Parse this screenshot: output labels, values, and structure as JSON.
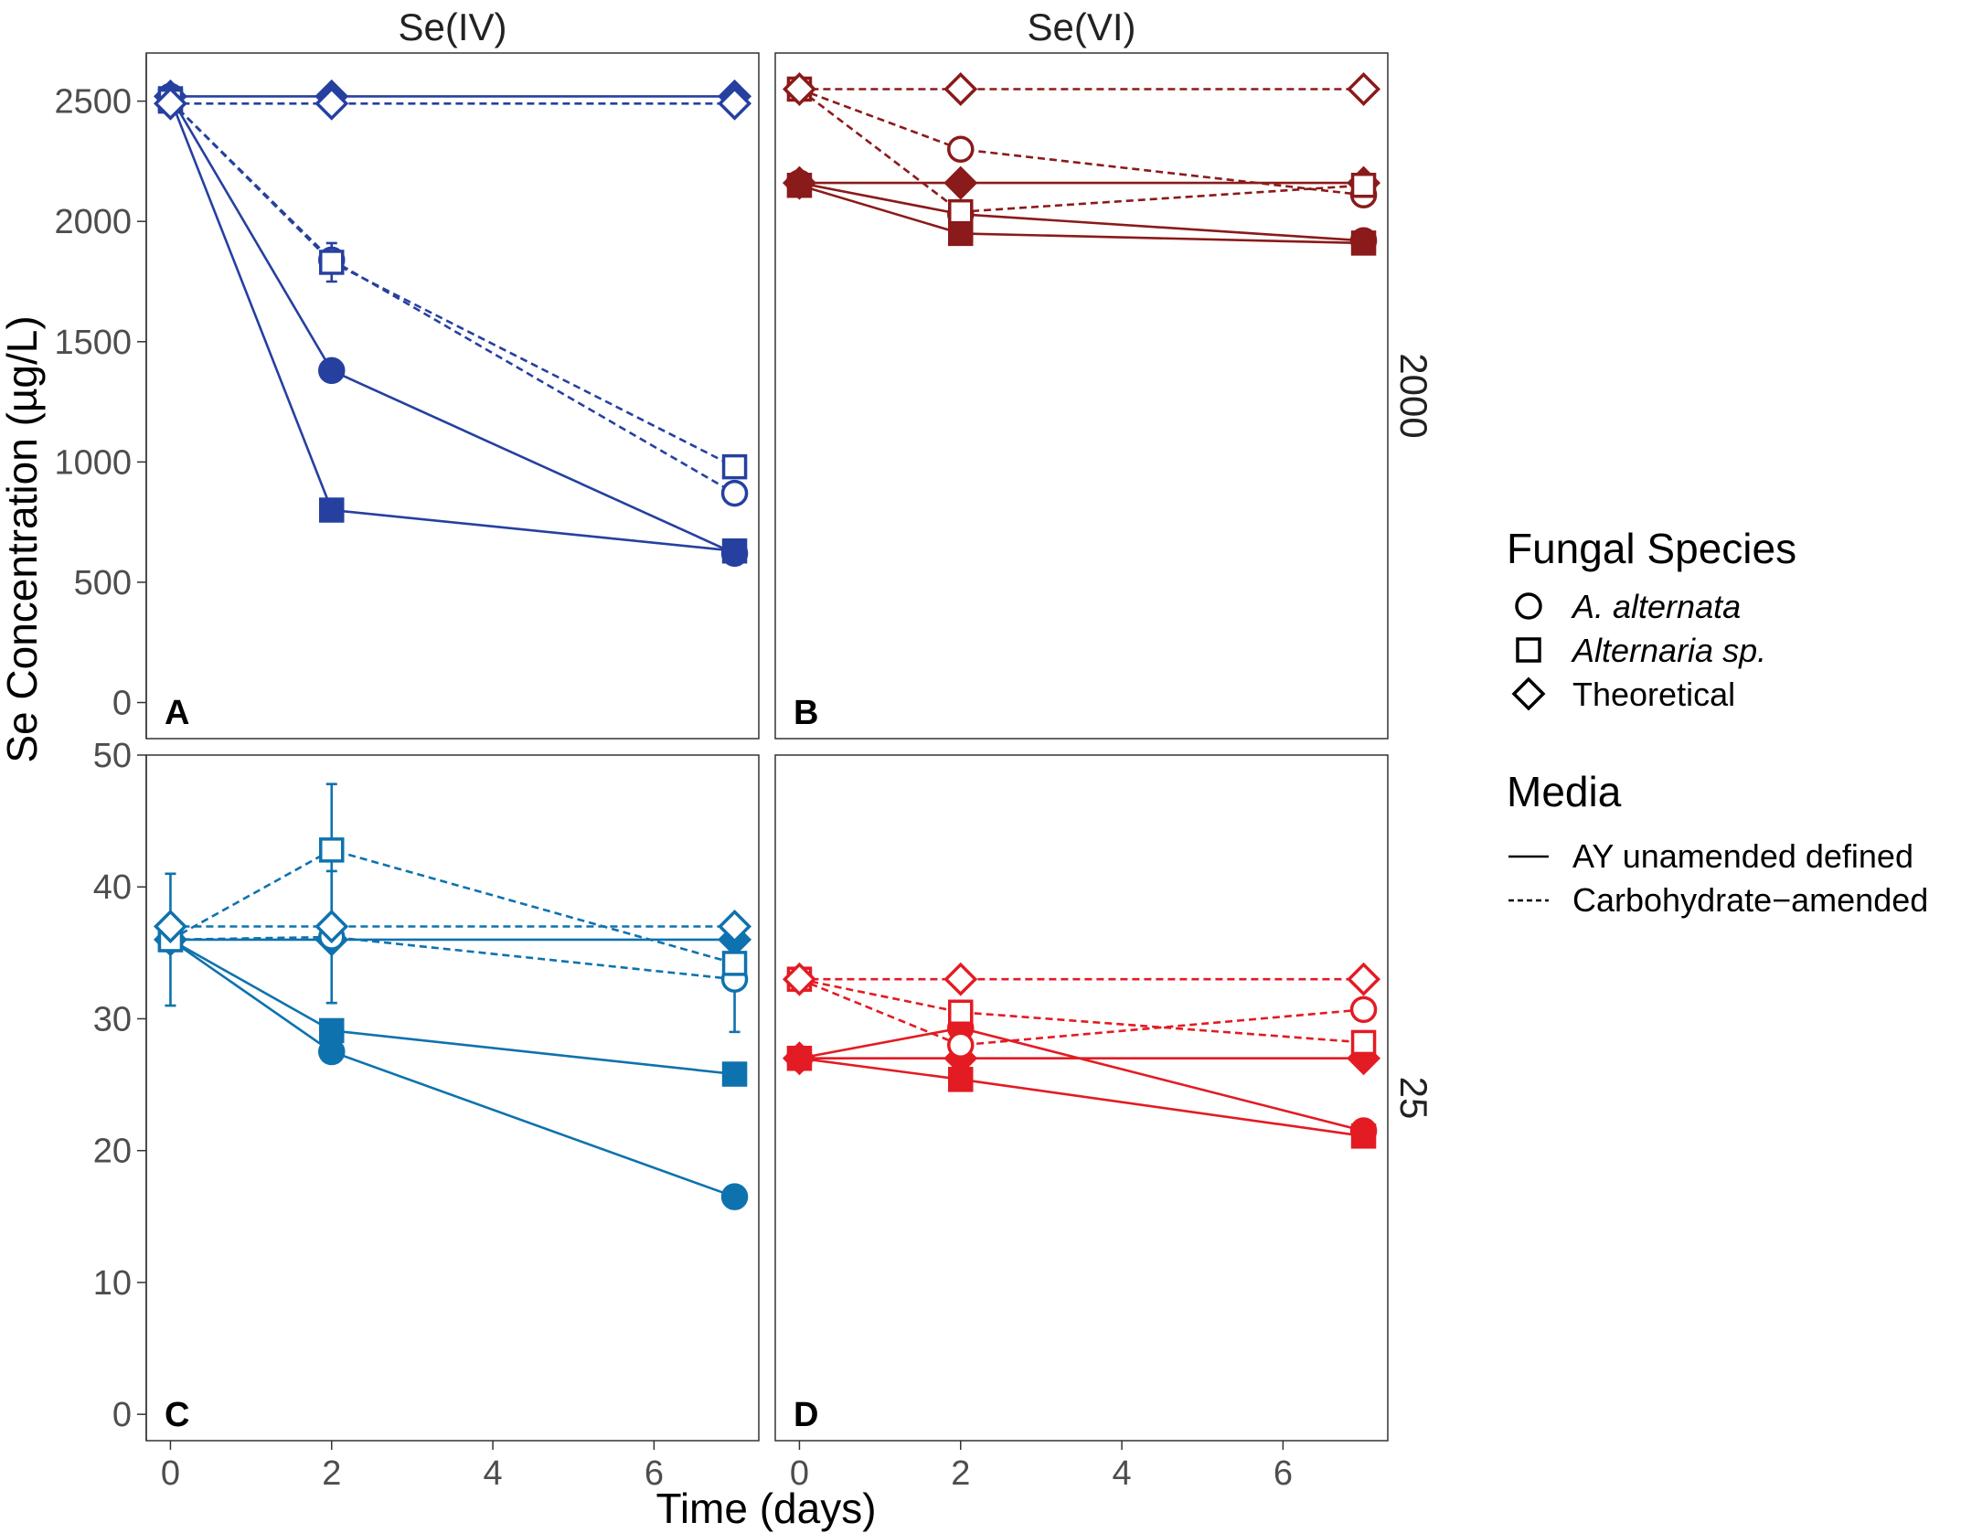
{
  "chart_data": {
    "type": "line",
    "facets": {
      "columns": [
        "Se(IV)",
        "Se(VI)"
      ],
      "rows": [
        "2000",
        "25"
      ]
    },
    "xlabel": "Time (days)",
    "ylabel": "Se Concentration (µg/L)",
    "xlim": [
      -0.3,
      7.3
    ],
    "x_ticks": [
      0,
      2,
      4,
      6
    ],
    "row_scales": {
      "2000": {
        "ylim": [
          -150,
          2700
        ],
        "ticks": [
          0,
          500,
          1000,
          1500,
          2000,
          2500
        ]
      },
      "25": {
        "ylim": [
          -2,
          50
        ],
        "ticks": [
          0,
          10,
          20,
          30,
          40,
          50
        ]
      }
    },
    "legend": {
      "species_title": "Fungal Species",
      "species": [
        {
          "label": "A. alternata",
          "shape": "circle",
          "italic": true
        },
        {
          "label": "Alternaria sp.",
          "shape": "square",
          "italic": true
        },
        {
          "label": "Theoretical",
          "shape": "diamond",
          "italic": false
        }
      ],
      "media_title": "Media",
      "media": [
        {
          "label": "AY unamended defined",
          "linetype": "solid"
        },
        {
          "label": "Carbohydrate−amended",
          "linetype": "dashed"
        }
      ],
      "position": "right"
    },
    "panels": [
      {
        "label": "A",
        "column": "Se(IV)",
        "row": "2000",
        "color": "#2640A0",
        "series": [
          {
            "species": "A. alternata",
            "media": "AY unamended defined",
            "x": [
              0,
              2,
              7
            ],
            "y": [
              2520,
              1380,
              620
            ]
          },
          {
            "species": "Alternaria sp.",
            "media": "AY unamended defined",
            "x": [
              0,
              2,
              7
            ],
            "y": [
              2510,
              800,
              630
            ]
          },
          {
            "species": "Theoretical",
            "media": "AY unamended defined",
            "x": [
              0,
              2,
              7
            ],
            "y": [
              2520,
              2520,
              2520
            ]
          },
          {
            "species": "A. alternata",
            "media": "Carbohydrate−amended",
            "x": [
              0,
              2,
              7
            ],
            "y": [
              2500,
              1840,
              870
            ]
          },
          {
            "species": "Alternaria sp.",
            "media": "Carbohydrate−amended",
            "x": [
              0,
              2,
              7
            ],
            "y": [
              2500,
              1830,
              980
            ],
            "err": [
              0,
              80,
              0
            ]
          },
          {
            "species": "Theoretical",
            "media": "Carbohydrate−amended",
            "x": [
              0,
              2,
              7
            ],
            "y": [
              2490,
              2490,
              2490
            ]
          }
        ]
      },
      {
        "label": "B",
        "column": "Se(VI)",
        "row": "2000",
        "color": "#8B1A1A",
        "series": [
          {
            "species": "A. alternata",
            "media": "AY unamended defined",
            "x": [
              0,
              2,
              7
            ],
            "y": [
              2160,
              2030,
              1920
            ]
          },
          {
            "species": "Alternaria sp.",
            "media": "AY unamended defined",
            "x": [
              0,
              2,
              7
            ],
            "y": [
              2150,
              1950,
              1910
            ]
          },
          {
            "species": "Theoretical",
            "media": "AY unamended defined",
            "x": [
              0,
              2,
              7
            ],
            "y": [
              2160,
              2160,
              2160
            ]
          },
          {
            "species": "A. alternata",
            "media": "Carbohydrate−amended",
            "x": [
              0,
              2,
              7
            ],
            "y": [
              2550,
              2300,
              2110
            ]
          },
          {
            "species": "Alternaria sp.",
            "media": "Carbohydrate−amended",
            "x": [
              0,
              2,
              7
            ],
            "y": [
              2550,
              2040,
              2150
            ]
          },
          {
            "species": "Theoretical",
            "media": "Carbohydrate−amended",
            "x": [
              0,
              2,
              7
            ],
            "y": [
              2550,
              2550,
              2550
            ]
          }
        ]
      },
      {
        "label": "C",
        "column": "Se(IV)",
        "row": "25",
        "color": "#0E72AE",
        "series": [
          {
            "species": "A. alternata",
            "media": "AY unamended defined",
            "x": [
              0,
              2,
              7
            ],
            "y": [
              36,
              27.5,
              16.5
            ]
          },
          {
            "species": "Alternaria sp.",
            "media": "AY unamended defined",
            "x": [
              0,
              2,
              7
            ],
            "y": [
              36,
              29.1,
              25.8
            ]
          },
          {
            "species": "Theoretical",
            "media": "AY unamended defined",
            "x": [
              0,
              2,
              7
            ],
            "y": [
              36,
              36,
              36
            ]
          },
          {
            "species": "A. alternata",
            "media": "Carbohydrate−amended",
            "x": [
              0,
              2,
              7
            ],
            "y": [
              36,
              36.2,
              33
            ],
            "err": [
              5,
              5,
              4
            ]
          },
          {
            "species": "Alternaria sp.",
            "media": "Carbohydrate−amended",
            "x": [
              0,
              2,
              7
            ],
            "y": [
              36,
              42.8,
              34.2
            ],
            "err": [
              0,
              5,
              0
            ]
          },
          {
            "species": "Theoretical",
            "media": "Carbohydrate−amended",
            "x": [
              0,
              2,
              7
            ],
            "y": [
              37,
              37,
              37
            ]
          }
        ]
      },
      {
        "label": "D",
        "column": "Se(VI)",
        "row": "25",
        "color": "#E31B23",
        "series": [
          {
            "species": "A. alternata",
            "media": "AY unamended defined",
            "x": [
              0,
              2,
              7
            ],
            "y": [
              27,
              29.3,
              21.5
            ]
          },
          {
            "species": "Alternaria sp.",
            "media": "AY unamended defined",
            "x": [
              0,
              2,
              7
            ],
            "y": [
              27,
              25.4,
              21.1
            ]
          },
          {
            "species": "Theoretical",
            "media": "AY unamended defined",
            "x": [
              0,
              2,
              7
            ],
            "y": [
              27,
              27,
              27
            ]
          },
          {
            "species": "A. alternata",
            "media": "Carbohydrate−amended",
            "x": [
              0,
              2,
              7
            ],
            "y": [
              33,
              28,
              30.7
            ]
          },
          {
            "species": "Alternaria sp.",
            "media": "Carbohydrate−amended",
            "x": [
              0,
              2,
              7
            ],
            "y": [
              33,
              30.5,
              28.2
            ]
          },
          {
            "species": "Theoretical",
            "media": "Carbohydrate−amended",
            "x": [
              0,
              2,
              7
            ],
            "y": [
              33,
              33,
              33
            ]
          }
        ]
      }
    ]
  }
}
